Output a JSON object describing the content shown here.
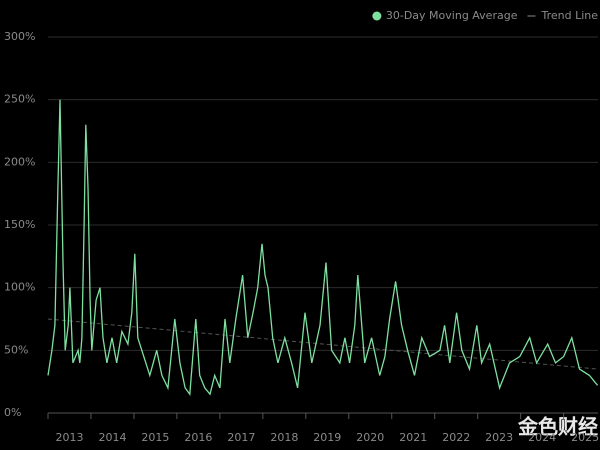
{
  "chart_data": {
    "type": "line",
    "series": [
      {
        "name": "30-Day Moving Average",
        "color": "#7ee0a0",
        "x": [
          2013.0,
          2013.09,
          2013.16,
          2013.23,
          2013.28,
          2013.35,
          2013.4,
          2013.47,
          2013.51,
          2013.58,
          2013.7,
          2013.74,
          2013.79,
          2013.84,
          2013.88,
          2013.93,
          2013.98,
          2014.02,
          2014.12,
          2014.21,
          2014.28,
          2014.37,
          2014.49,
          2014.6,
          2014.72,
          2014.86,
          2014.95,
          2015.02,
          2015.09,
          2015.23,
          2015.37,
          2015.53,
          2015.65,
          2015.79,
          2015.95,
          2016.07,
          2016.19,
          2016.3,
          2016.44,
          2016.53,
          2016.65,
          2016.77,
          2016.88,
          2017.0,
          2017.12,
          2017.23,
          2017.37,
          2017.53,
          2017.65,
          2017.77,
          2017.88,
          2017.98,
          2018.05,
          2018.12,
          2018.23,
          2018.35,
          2018.51,
          2018.67,
          2018.81,
          2018.98,
          2019.14,
          2019.33,
          2019.47,
          2019.6,
          2019.79,
          2019.91,
          2020.02,
          2020.14,
          2020.21,
          2020.37,
          2020.53,
          2020.72,
          2020.84,
          2020.95,
          2021.09,
          2021.23,
          2021.37,
          2021.53,
          2021.7,
          2021.88,
          2022.12,
          2022.23,
          2022.35,
          2022.51,
          2022.63,
          2022.81,
          2022.98,
          2023.09,
          2023.28,
          2023.51,
          2023.74,
          2023.98,
          2024.21,
          2024.37,
          2024.63,
          2024.81,
          2025.0,
          2025.19,
          2025.37,
          2025.6,
          2025.79
        ],
        "values": [
          30,
          50,
          70,
          180,
          250,
          120,
          50,
          70,
          100,
          40,
          50,
          40,
          60,
          150,
          230,
          180,
          90,
          50,
          90,
          100,
          60,
          40,
          60,
          40,
          65,
          55,
          80,
          127,
          60,
          45,
          30,
          50,
          30,
          20,
          75,
          40,
          20,
          15,
          75,
          30,
          20,
          15,
          30,
          20,
          75,
          40,
          75,
          110,
          60,
          80,
          100,
          135,
          110,
          100,
          60,
          40,
          60,
          40,
          20,
          80,
          40,
          70,
          120,
          50,
          40,
          60,
          40,
          70,
          110,
          40,
          60,
          30,
          45,
          75,
          105,
          70,
          50,
          30,
          60,
          45,
          50,
          70,
          40,
          80,
          50,
          35,
          70,
          40,
          55,
          20,
          40,
          45,
          60,
          40,
          55,
          40,
          45,
          60,
          35,
          30,
          22
        ]
      },
      {
        "name": "Trend Line",
        "color": "#555555",
        "dashed": true,
        "x": [
          2013.0,
          2025.79
        ],
        "values": [
          75,
          35
        ]
      }
    ],
    "xlim": [
      2013,
      2025.8
    ],
    "xticks": [
      {
        "value": 2013.5,
        "label": "2013"
      },
      {
        "value": 2014.5,
        "label": "2014"
      },
      {
        "value": 2015.5,
        "label": "2015"
      },
      {
        "value": 2016.5,
        "label": "2016"
      },
      {
        "value": 2017.5,
        "label": "2017"
      },
      {
        "value": 2018.5,
        "label": "2018"
      },
      {
        "value": 2019.5,
        "label": "2019"
      },
      {
        "value": 2020.5,
        "label": "2020"
      },
      {
        "value": 2021.5,
        "label": "2021"
      },
      {
        "value": 2022.5,
        "label": "2022"
      },
      {
        "value": 2023.5,
        "label": "2023"
      },
      {
        "value": 2024.5,
        "label": "2024"
      },
      {
        "value": 2025.5,
        "label": "2025"
      }
    ],
    "ylim": [
      0,
      300
    ],
    "yticks": [
      {
        "value": 0,
        "label": "0%"
      },
      {
        "value": 50,
        "label": "50%"
      },
      {
        "value": 100,
        "label": "100%"
      },
      {
        "value": 150,
        "label": "150%"
      },
      {
        "value": 200,
        "label": "200%"
      },
      {
        "value": 250,
        "label": "250%"
      },
      {
        "value": 300,
        "label": "300%"
      }
    ],
    "grid": true,
    "legend": "top-right",
    "watermark": "金色财经"
  }
}
